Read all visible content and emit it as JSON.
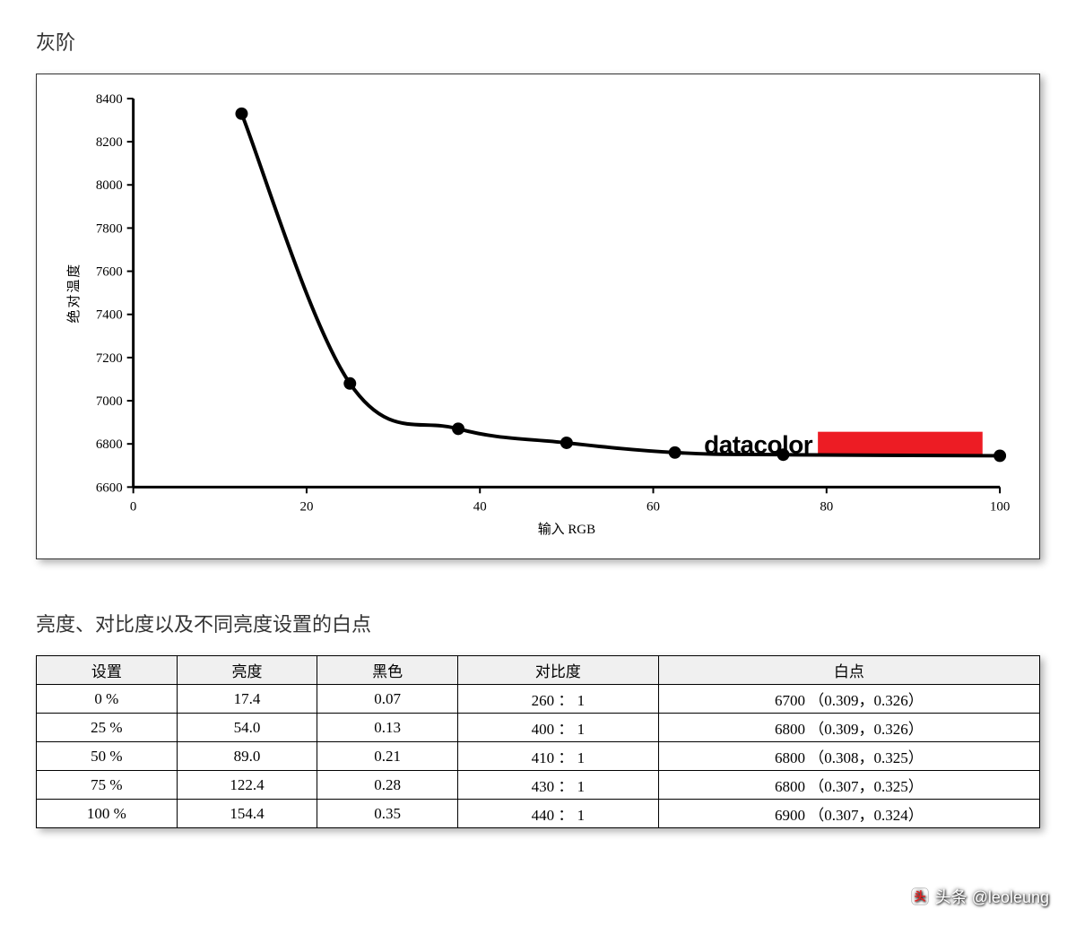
{
  "chart_section": {
    "title": "灰阶",
    "chart": {
      "type": "line",
      "xlabel": "输入 RGB",
      "ylabel": "绝对温度",
      "xlim": [
        0,
        100
      ],
      "ylim": [
        6600,
        8400
      ],
      "xtick_step": 20,
      "ytick_step": 200,
      "xticks": [
        0,
        20,
        40,
        60,
        80,
        100
      ],
      "yticks": [
        6600,
        6800,
        7000,
        7200,
        7400,
        7600,
        7800,
        8000,
        8200,
        8400
      ],
      "line_color": "#000000",
      "line_width": 4,
      "marker_color": "#000000",
      "marker_radius": 7,
      "background_color": "#ffffff",
      "axis_color": "#000000",
      "axis_width": 3,
      "tick_fontsize": 15,
      "label_fontsize": 16,
      "points": [
        {
          "x": 12.5,
          "y": 8330
        },
        {
          "x": 25,
          "y": 7080
        },
        {
          "x": 37.5,
          "y": 6870
        },
        {
          "x": 50,
          "y": 6805
        },
        {
          "x": 62.5,
          "y": 6760
        },
        {
          "x": 75,
          "y": 6750
        },
        {
          "x": 100,
          "y": 6745
        }
      ],
      "watermark": {
        "text": "datacolor",
        "bar_color": "#ed1c24",
        "text_color": "#000000"
      }
    }
  },
  "table_section": {
    "title": "亮度、对比度以及不同亮度设置的白点",
    "columns": [
      "设置",
      "亮度",
      "黑色",
      "对比度",
      "白点"
    ],
    "column_widths_pct": [
      14,
      14,
      14,
      20,
      38
    ],
    "rows": [
      [
        "0 %",
        "17.4",
        "0.07",
        "260 ： 1",
        "6700 （0.309，0.326）"
      ],
      [
        "25 %",
        "54.0",
        "0.13",
        "400 ： 1",
        "6800 （0.309，0.326）"
      ],
      [
        "50 %",
        "89.0",
        "0.21",
        "410 ： 1",
        "6800 （0.308，0.325）"
      ],
      [
        "75 %",
        "122.4",
        "0.28",
        "430 ： 1",
        "6800 （0.307，0.325）"
      ],
      [
        "100 %",
        "154.4",
        "0.35",
        "440 ： 1",
        "6900 （0.307，0.324）"
      ]
    ],
    "header_bg": "#f0f0f0",
    "border_color": "#000000",
    "font_size": 17
  },
  "attribution": {
    "text": "头条 @leoleung"
  }
}
